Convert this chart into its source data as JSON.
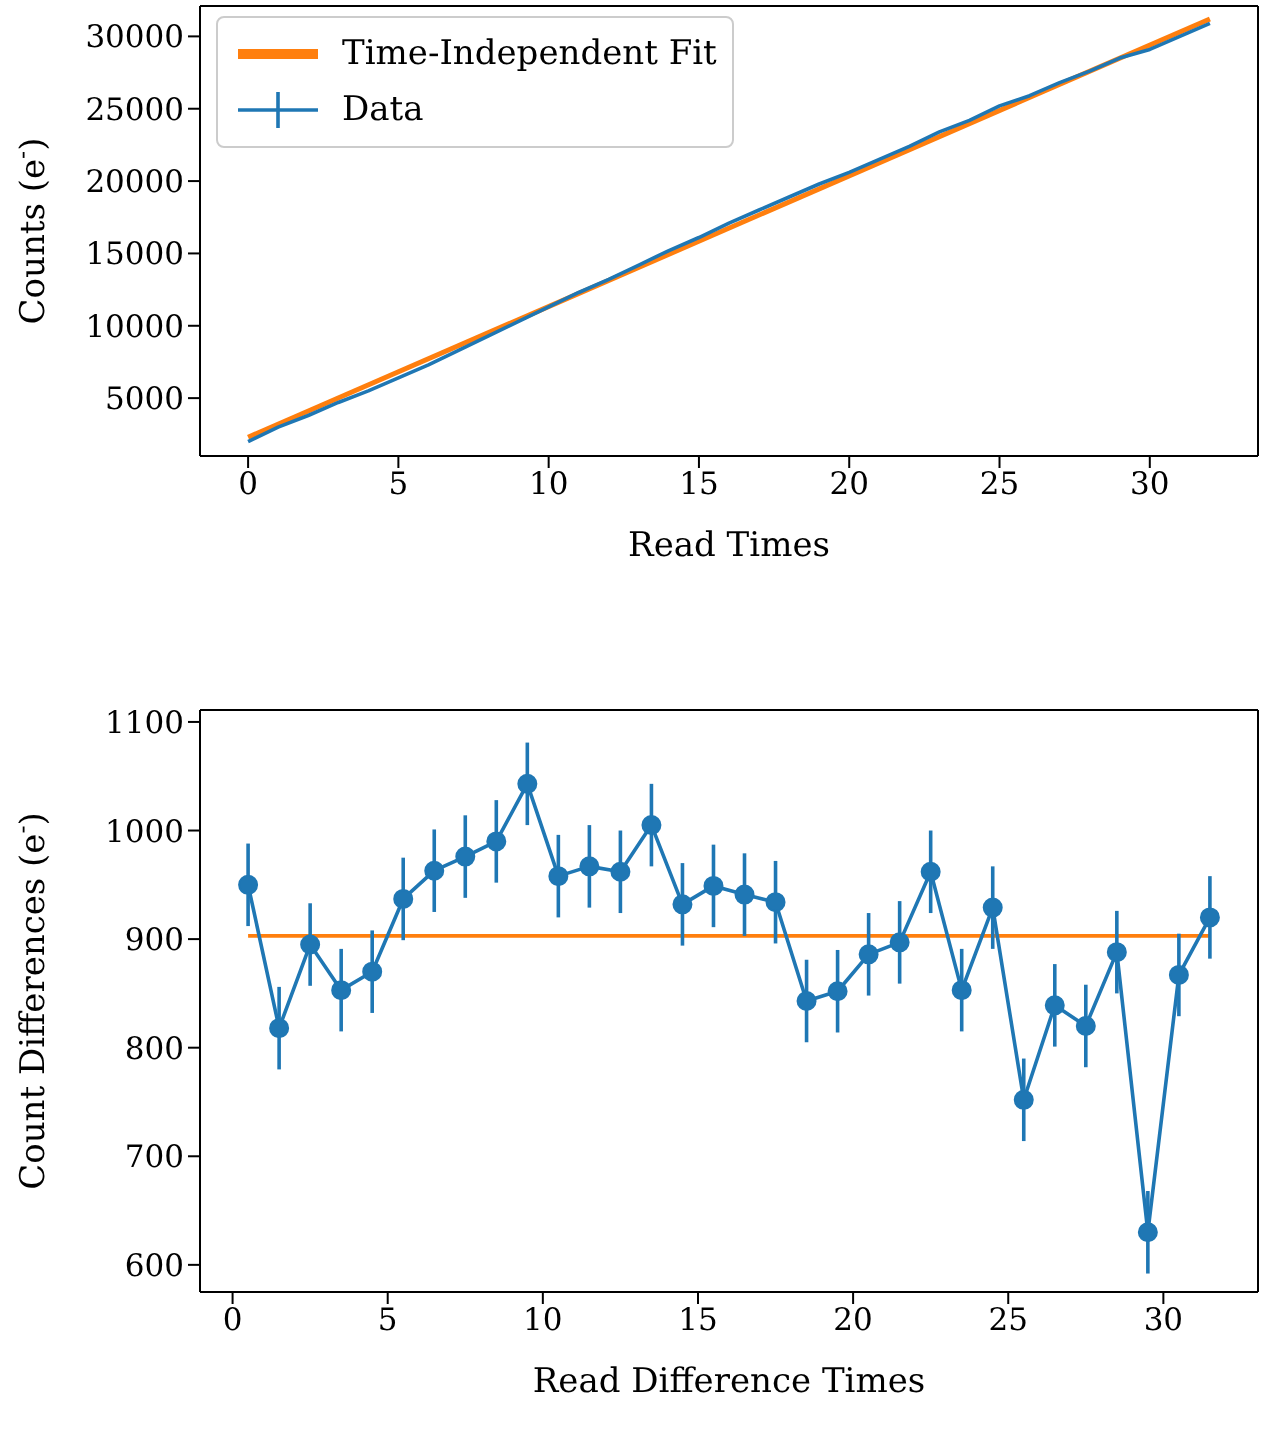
{
  "chart_data": [
    {
      "type": "line",
      "xlabel": "Read Times",
      "ylabel": "Counts (e$^{-}$)",
      "xlim": [
        -1.6,
        33.6
      ],
      "ylim": [
        1000,
        32100
      ],
      "xticks": [
        0,
        5,
        10,
        15,
        20,
        25,
        30
      ],
      "yticks": [
        5000,
        10000,
        15000,
        20000,
        25000,
        30000
      ],
      "legend": "top left",
      "marker": "none",
      "series": [
        {
          "name": "Time-Independent Fit",
          "color": "#ff7f0e",
          "x": [
            0,
            32
          ],
          "values": [
            2300,
            31200
          ]
        },
        {
          "name": "Data",
          "color": "#1f77b4",
          "x": [
            0,
            1,
            2,
            3,
            4,
            5,
            6,
            7,
            8,
            9,
            10,
            11,
            12,
            13,
            14,
            15,
            16,
            17,
            18,
            19,
            20,
            21,
            22,
            23,
            24,
            25,
            26,
            27,
            28,
            29,
            30,
            31,
            32
          ],
          "values": [
            2000,
            3000,
            3800,
            4700,
            5500,
            6400,
            7300,
            8300,
            9300,
            10300,
            11300,
            12300,
            13200,
            14200,
            15200,
            16100,
            17100,
            18000,
            18900,
            19800,
            20600,
            21500,
            22400,
            23400,
            24200,
            25200,
            25900,
            26800,
            27600,
            28500,
            29100,
            30000,
            30900
          ]
        }
      ]
    },
    {
      "type": "line",
      "xlabel": "Read Difference Times",
      "ylabel": "Count Differences (e$^{-}$)",
      "xlim": [
        -1.05,
        33.05
      ],
      "ylim": [
        575,
        1111
      ],
      "xticks": [
        0,
        5,
        10,
        15,
        20,
        25,
        30
      ],
      "yticks": [
        600,
        700,
        800,
        900,
        1000,
        1100
      ],
      "legend": false,
      "series": [
        {
          "color": "#ff7f0e",
          "marker": "none",
          "x": [
            0.5,
            31.5
          ],
          "values": [
            903,
            903
          ]
        },
        {
          "color": "#1f77b4",
          "marker": "circle",
          "x": [
            0.5,
            1.5,
            2.5,
            3.5,
            4.5,
            5.5,
            6.5,
            7.5,
            8.5,
            9.5,
            10.5,
            11.5,
            12.5,
            13.5,
            14.5,
            15.5,
            16.5,
            17.5,
            18.5,
            19.5,
            20.5,
            21.5,
            22.5,
            23.5,
            24.5,
            25.5,
            26.5,
            27.5,
            28.5,
            29.5,
            30.5,
            31.5
          ],
          "values": [
            950,
            818,
            895,
            853,
            870,
            937,
            963,
            976,
            990,
            1043,
            958,
            967,
            962,
            1005,
            932,
            949,
            941,
            934,
            843,
            852,
            886,
            897,
            962,
            853,
            929,
            752,
            839,
            820,
            888,
            630,
            867,
            920
          ],
          "errors": [
            38,
            38,
            38,
            38,
            38,
            38,
            38,
            38,
            38,
            38,
            38,
            38,
            38,
            38,
            38,
            38,
            38,
            38,
            38,
            38,
            38,
            38,
            38,
            38,
            38,
            38,
            38,
            38,
            38,
            38,
            38,
            38
          ]
        }
      ]
    }
  ]
}
